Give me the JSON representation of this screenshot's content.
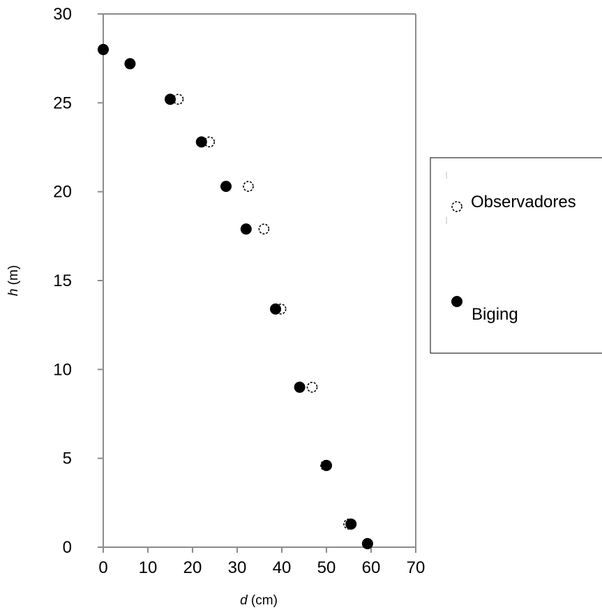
{
  "chart_data": {
    "type": "scatter",
    "x_axis": {
      "label_var": "d",
      "label_unit": " (cm)",
      "min": 0,
      "max": 70,
      "ticks": [
        "0",
        "10",
        "20",
        "30",
        "40",
        "50",
        "60",
        "70"
      ]
    },
    "y_axis": {
      "label_var": "h",
      "label_unit": " (m)",
      "min": 0,
      "max": 30,
      "ticks": [
        "0",
        "5",
        "10",
        "15",
        "20",
        "25",
        "30"
      ]
    },
    "grid": false,
    "legend_position": "right",
    "series": [
      {
        "name": "Observadores",
        "marker": "open-circle",
        "color": "#000000",
        "points": [
          [
            0,
            28
          ],
          [
            6,
            27.2
          ],
          [
            16.8,
            25.2
          ],
          [
            23.8,
            22.8
          ],
          [
            32.5,
            20.3
          ],
          [
            36,
            17.9
          ],
          [
            39.8,
            13.4
          ],
          [
            46.8,
            9
          ],
          [
            49.8,
            4.6
          ],
          [
            55,
            1.3
          ],
          [
            59.2,
            0.2
          ]
        ]
      },
      {
        "name": "Biging",
        "marker": "filled-circle",
        "color": "#000000",
        "points": [
          [
            0,
            28
          ],
          [
            6,
            27.2
          ],
          [
            15,
            25.2
          ],
          [
            22,
            22.8
          ],
          [
            27.5,
            20.3
          ],
          [
            32,
            17.9
          ],
          [
            38.6,
            13.4
          ],
          [
            44,
            9
          ],
          [
            50,
            4.6
          ],
          [
            55.5,
            1.3
          ],
          [
            59.2,
            0.2
          ]
        ]
      }
    ]
  }
}
